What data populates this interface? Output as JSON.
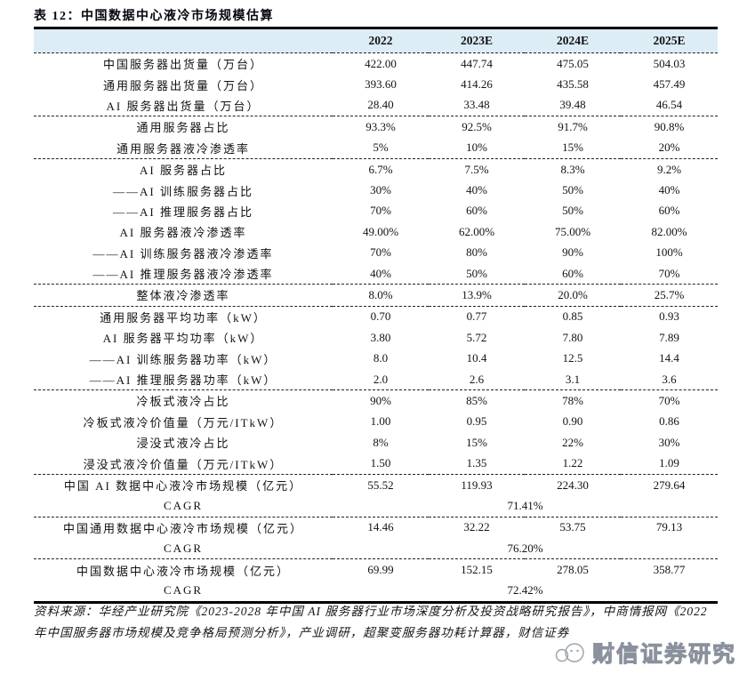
{
  "title": "表 12：中国数据中心液冷市场规模估算",
  "table": {
    "columns": [
      "",
      "2022",
      "2023E",
      "2024E",
      "2025E"
    ],
    "groups": [
      {
        "rows": [
          {
            "label": "中国服务器出货量（万台）",
            "values": [
              "422.00",
              "447.74",
              "475.05",
              "504.03"
            ]
          },
          {
            "label": "通用服务器出货量（万台）",
            "values": [
              "393.60",
              "414.26",
              "435.58",
              "457.49"
            ]
          },
          {
            "label": "AI 服务器出货量（万台）",
            "values": [
              "28.40",
              "33.48",
              "39.48",
              "46.54"
            ]
          }
        ]
      },
      {
        "rows": [
          {
            "label": "通用服务器占比",
            "values": [
              "93.3%",
              "92.5%",
              "91.7%",
              "90.8%"
            ]
          },
          {
            "label": "通用服务器液冷渗透率",
            "values": [
              "5%",
              "10%",
              "15%",
              "20%"
            ]
          }
        ]
      },
      {
        "rows": [
          {
            "label": "AI 服务器占比",
            "values": [
              "6.7%",
              "7.5%",
              "8.3%",
              "9.2%"
            ]
          },
          {
            "label": "——AI 训练服务器占比",
            "values": [
              "30%",
              "40%",
              "50%",
              "40%"
            ]
          },
          {
            "label": "——AI 推理服务器占比",
            "values": [
              "70%",
              "60%",
              "50%",
              "60%"
            ]
          },
          {
            "label": "AI 服务器液冷渗透率",
            "values": [
              "49.00%",
              "62.00%",
              "75.00%",
              "82.00%"
            ]
          },
          {
            "label": "——AI 训练服务器液冷渗透率",
            "values": [
              "70%",
              "80%",
              "90%",
              "100%"
            ]
          },
          {
            "label": "——AI 推理服务器液冷渗透率",
            "values": [
              "40%",
              "50%",
              "60%",
              "70%"
            ]
          }
        ]
      },
      {
        "rows": [
          {
            "label": "整体液冷渗透率",
            "values": [
              "8.0%",
              "13.9%",
              "20.0%",
              "25.7%"
            ]
          }
        ]
      },
      {
        "rows": [
          {
            "label": "通用服务器平均功率（kW）",
            "values": [
              "0.70",
              "0.77",
              "0.85",
              "0.93"
            ]
          },
          {
            "label": "AI 服务器平均功率（kW）",
            "values": [
              "3.80",
              "5.72",
              "7.80",
              "7.89"
            ]
          },
          {
            "label": "——AI 训练服务器功率（kW）",
            "values": [
              "8.0",
              "10.4",
              "12.5",
              "14.4"
            ]
          },
          {
            "label": "——AI 推理服务器功率（kW）",
            "values": [
              "2.0",
              "2.6",
              "3.1",
              "3.6"
            ]
          }
        ]
      },
      {
        "rows": [
          {
            "label": "冷板式液冷占比",
            "values": [
              "90%",
              "85%",
              "78%",
              "70%"
            ]
          },
          {
            "label": "冷板式液冷价值量（万元/ITkW）",
            "values": [
              "1.00",
              "0.95",
              "0.90",
              "0.86"
            ]
          },
          {
            "label": "浸没式液冷占比",
            "values": [
              "8%",
              "15%",
              "22%",
              "30%"
            ]
          },
          {
            "label": "浸没式液冷价值量（万元/ITkW）",
            "values": [
              "1.50",
              "1.35",
              "1.22",
              "1.09"
            ]
          }
        ]
      },
      {
        "rows": [
          {
            "label": "中国 AI 数据中心液冷市场规模（亿元）",
            "values": [
              "55.52",
              "119.93",
              "224.30",
              "279.64"
            ]
          },
          {
            "label": "CAGR",
            "cagr": "71.41%"
          }
        ]
      },
      {
        "rows": [
          {
            "label": "中国通用数据中心液冷市场规模（亿元）",
            "values": [
              "14.46",
              "32.22",
              "53.75",
              "79.13"
            ]
          },
          {
            "label": "CAGR",
            "cagr": "76.20%"
          }
        ]
      },
      {
        "rows": [
          {
            "label": "中国数据中心液冷市场规模（亿元）",
            "values": [
              "69.99",
              "152.15",
              "278.05",
              "358.77"
            ]
          },
          {
            "label": "CAGR",
            "cagr": "72.42%"
          }
        ]
      }
    ]
  },
  "source_note": "资料来源：华经产业研究院《2023-2028 年中国 AI 服务器行业市场深度分析及投资战略研究报告》，中商情报网《2022 年中国服务器市场规模及竞争格局预测分析》，产业调研，超聚变服务器功耗计算器，财信证券",
  "watermark": "财信证券研究"
}
